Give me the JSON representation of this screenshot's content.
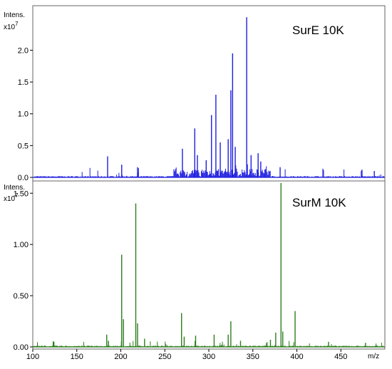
{
  "chart_data": [
    {
      "type": "line",
      "panel": "top",
      "title": "SurE 10K",
      "ylabel": "Intens.",
      "y_multiplier": "x10",
      "y_exponent": "7",
      "xlim": [
        100,
        500
      ],
      "ylim": [
        0,
        2.7
      ],
      "y_ticks": [
        "0.0",
        "0.5",
        "1.0",
        "1.5",
        "2.0"
      ],
      "color": "#1f1fe0",
      "peaks": [
        {
          "x": 185,
          "y": 0.33
        },
        {
          "x": 201,
          "y": 0.2
        },
        {
          "x": 219,
          "y": 0.16
        },
        {
          "x": 270,
          "y": 0.45
        },
        {
          "x": 284,
          "y": 0.77
        },
        {
          "x": 287,
          "y": 0.35
        },
        {
          "x": 297,
          "y": 0.27
        },
        {
          "x": 303,
          "y": 0.98
        },
        {
          "x": 308,
          "y": 1.3
        },
        {
          "x": 313,
          "y": 0.55
        },
        {
          "x": 322,
          "y": 0.6
        },
        {
          "x": 325,
          "y": 1.37
        },
        {
          "x": 327,
          "y": 1.95
        },
        {
          "x": 330,
          "y": 0.48
        },
        {
          "x": 343,
          "y": 2.52
        },
        {
          "x": 348,
          "y": 0.35
        },
        {
          "x": 356,
          "y": 0.38
        },
        {
          "x": 359,
          "y": 0.25
        },
        {
          "x": 381,
          "y": 0.16
        },
        {
          "x": 474,
          "y": 0.12
        },
        {
          "x": 488,
          "y": 0.1
        }
      ]
    },
    {
      "type": "line",
      "panel": "bottom",
      "title": "SurM 10K",
      "ylabel": "Intens.",
      "y_multiplier": "x10",
      "y_exponent": "7",
      "xlabel": "m/z",
      "xlim": [
        100,
        500
      ],
      "ylim": [
        0,
        1.62
      ],
      "x_ticks": [
        100,
        150,
        200,
        250,
        300,
        350,
        400,
        450
      ],
      "y_ticks": [
        "0.00",
        "0.50",
        "1.00",
        "1.50"
      ],
      "color": "#2e7d1e",
      "peaks": [
        {
          "x": 124,
          "y": 0.05
        },
        {
          "x": 184,
          "y": 0.12
        },
        {
          "x": 186,
          "y": 0.06
        },
        {
          "x": 201,
          "y": 0.9
        },
        {
          "x": 203,
          "y": 0.27
        },
        {
          "x": 217,
          "y": 1.4
        },
        {
          "x": 219,
          "y": 0.23
        },
        {
          "x": 227,
          "y": 0.08
        },
        {
          "x": 269,
          "y": 0.33
        },
        {
          "x": 272,
          "y": 0.1
        },
        {
          "x": 285,
          "y": 0.11
        },
        {
          "x": 306,
          "y": 0.12
        },
        {
          "x": 322,
          "y": 0.12
        },
        {
          "x": 325,
          "y": 0.25
        },
        {
          "x": 336,
          "y": 0.06
        },
        {
          "x": 370,
          "y": 0.07
        },
        {
          "x": 376,
          "y": 0.14
        },
        {
          "x": 382,
          "y": 1.6
        },
        {
          "x": 384,
          "y": 0.15
        },
        {
          "x": 398,
          "y": 0.35
        },
        {
          "x": 436,
          "y": 0.05
        },
        {
          "x": 478,
          "y": 0.04
        }
      ]
    }
  ]
}
